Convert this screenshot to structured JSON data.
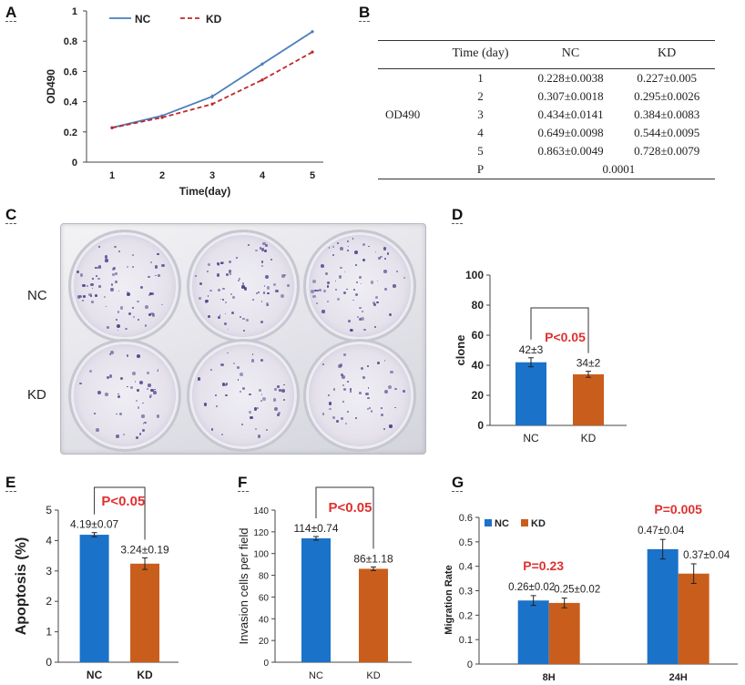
{
  "panels": {
    "a": {
      "label": "A"
    },
    "b": {
      "label": "B"
    },
    "c": {
      "label": "C"
    },
    "d": {
      "label": "D"
    },
    "e": {
      "label": "E"
    },
    "f": {
      "label": "F"
    },
    "g": {
      "label": "G"
    }
  },
  "table_b": {
    "headers": [
      "Time (day)",
      "NC",
      "KD"
    ],
    "row_group": "OD490",
    "rows": [
      {
        "day": "1",
        "nc": "0.228±0.0038",
        "kd": "0.227±0.005"
      },
      {
        "day": "2",
        "nc": "0.307±0.0018",
        "kd": "0.295±0.0026"
      },
      {
        "day": "3",
        "nc": "0.434±0.0141",
        "kd": "0.384±0.0083"
      },
      {
        "day": "4",
        "nc": "0.649±0.0098",
        "kd": "0.544±0.0095"
      },
      {
        "day": "5",
        "nc": "0.863±0.0049",
        "kd": "0.728±0.0079"
      }
    ],
    "p_label": "P",
    "p_value": "0.0001"
  },
  "plate_c": {
    "row_labels": [
      "NC",
      "KD"
    ]
  },
  "colors": {
    "nc": "#1a72c9",
    "kd": "#c95e1c",
    "line_nc": "#4a7ebb",
    "line_kd": "#c0282a",
    "sig": "#e03030"
  },
  "chart_data": [
    {
      "id": "A",
      "type": "line",
      "x": [
        1,
        2,
        3,
        4,
        5
      ],
      "series": [
        {
          "name": "NC",
          "values": [
            0.228,
            0.307,
            0.434,
            0.649,
            0.863
          ],
          "errors": [
            0.0038,
            0.0018,
            0.0141,
            0.0098,
            0.0049
          ]
        },
        {
          "name": "KD",
          "values": [
            0.227,
            0.295,
            0.384,
            0.544,
            0.728
          ],
          "errors": [
            0.005,
            0.0026,
            0.0083,
            0.0095,
            0.0079
          ]
        }
      ],
      "legend": [
        "NC",
        "KD"
      ],
      "xlabel": "Time(day)",
      "ylabel": "OD490",
      "ylim": [
        0,
        1
      ],
      "yticks": [
        "0",
        "0.2",
        "0.4",
        "0.6",
        "0.8",
        "1"
      ],
      "xticks": [
        "1",
        "2",
        "3",
        "4",
        "5"
      ]
    },
    {
      "id": "D",
      "type": "bar",
      "categories": [
        "NC",
        "KD"
      ],
      "values": [
        42,
        34
      ],
      "errors": [
        3,
        2
      ],
      "data_labels": [
        "42±3",
        "34±2"
      ],
      "annotation": "P<0.05",
      "xlabel": "",
      "ylabel": "clone",
      "ylim": [
        0,
        100
      ],
      "yticks": [
        "0",
        "20",
        "40",
        "60",
        "80",
        "100"
      ]
    },
    {
      "id": "E",
      "type": "bar",
      "categories": [
        "NC",
        "KD"
      ],
      "values": [
        4.19,
        3.24
      ],
      "errors": [
        0.07,
        0.19
      ],
      "data_labels": [
        "4.19±0.07",
        "3.24±0.19"
      ],
      "annotation": "P<0.05",
      "xlabel": "",
      "ylabel": "Apoptosis (%)",
      "ylim": [
        0,
        5
      ],
      "yticks": [
        "0",
        "1",
        "2",
        "3",
        "4",
        "5"
      ]
    },
    {
      "id": "F",
      "type": "bar",
      "categories": [
        "NC",
        "KD"
      ],
      "values": [
        114,
        86
      ],
      "errors": [
        0.74,
        1.18
      ],
      "data_labels": [
        "114±0.74",
        "86±1.18"
      ],
      "annotation": "P<0.05",
      "xlabel": "",
      "ylabel": "Invasion cells per field",
      "ylim": [
        0,
        140
      ],
      "yticks": [
        "0",
        "20",
        "40",
        "60",
        "80",
        "100",
        "120",
        "140"
      ]
    },
    {
      "id": "G",
      "type": "bar",
      "categories": [
        "8H",
        "24H"
      ],
      "series": [
        {
          "name": "NC",
          "values": [
            0.26,
            0.47
          ],
          "errors": [
            0.02,
            0.04
          ],
          "data_labels": [
            "0.26±0.02",
            "0.47±0.04"
          ]
        },
        {
          "name": "KD",
          "values": [
            0.25,
            0.37
          ],
          "errors": [
            0.02,
            0.04
          ],
          "data_labels": [
            "0.25±0.02",
            "0.37±0.04"
          ]
        }
      ],
      "annotations": [
        "P=0.23",
        "P=0.005"
      ],
      "legend": [
        "NC",
        "KD"
      ],
      "xlabel": "",
      "ylabel": "Migration Rate",
      "ylim": [
        0,
        0.6
      ],
      "yticks": [
        "0",
        "0.1",
        "0.2",
        "0.3",
        "0.4",
        "0.5",
        "0.6"
      ]
    }
  ]
}
